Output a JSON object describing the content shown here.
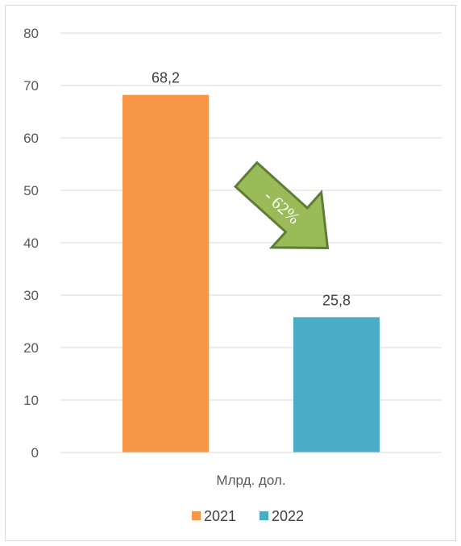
{
  "chart_data": {
    "type": "bar",
    "categories": [
      "Млрд. дол."
    ],
    "series": [
      {
        "name": "2021",
        "values": [
          68.2
        ],
        "label": "68,2",
        "color": "#f79646"
      },
      {
        "name": "2022",
        "values": [
          25.8
        ],
        "label": "25,8",
        "color": "#4bacc6"
      }
    ],
    "ylim": [
      0,
      80
    ],
    "yticks": [
      "0",
      "10",
      "20",
      "30",
      "40",
      "50",
      "60",
      "70",
      "80"
    ],
    "grid": true,
    "legend": "bottom",
    "annotation": {
      "text": "- 62%",
      "shape": "arrow-down-right",
      "fill": "#9bbb59",
      "stroke": "#5e7d35"
    }
  }
}
